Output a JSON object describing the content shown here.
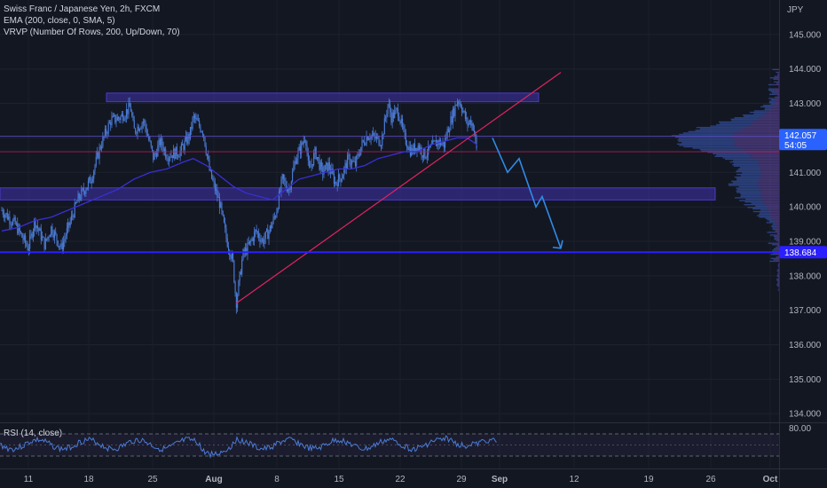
{
  "legend": {
    "title": "Swiss Franc / Japanese Yen, 2h, FXCM",
    "ema": "EMA (200, close, 0, SMA, 5)",
    "vrvp": "VRVP (Number Of Rows, 200, Up/Down, 70)"
  },
  "rsi": {
    "label": "RSI (14, close)",
    "upper_label": "80.00"
  },
  "colors": {
    "background": "#131722",
    "candles": "#4b7bd6",
    "ema": "#3a2fd6",
    "zone": "#4a3acb",
    "trendline": "#e0245e",
    "support": "#2b1fff",
    "projection": "#2f8be6",
    "price_badge": "#2962ff",
    "level_badge": "#7e57c2"
  },
  "chart_data": {
    "type": "candlestick",
    "currency": "JPY",
    "ylim": [
      133.8,
      146.0
    ],
    "y_ticks": [
      "134.000",
      "135.000",
      "136.000",
      "137.000",
      "138.000",
      "139.000",
      "140.000",
      "141.000",
      "142.000",
      "143.000",
      "144.000",
      "145.000"
    ],
    "x_ticks": [
      "11",
      "18",
      "25",
      "Aug",
      "8",
      "15",
      "22",
      "29",
      "Sep",
      "12",
      "19",
      "26",
      "Oct"
    ],
    "price_path": [
      [
        0,
        139.9
      ],
      [
        4,
        139.5
      ],
      [
        8,
        138.8
      ],
      [
        10,
        139.6
      ],
      [
        13,
        138.9
      ],
      [
        15,
        139.4
      ],
      [
        18,
        138.8
      ],
      [
        23,
        140.2
      ],
      [
        27,
        140.8
      ],
      [
        30,
        141.8
      ],
      [
        33,
        142.5
      ],
      [
        36,
        142.6
      ],
      [
        39,
        142.9
      ],
      [
        40,
        142.2
      ],
      [
        43,
        142.5
      ],
      [
        46,
        141.4
      ],
      [
        48,
        141.9
      ],
      [
        50,
        141.5
      ],
      [
        54,
        141.6
      ],
      [
        57,
        142.1
      ],
      [
        58,
        142.6
      ],
      [
        61,
        142.2
      ],
      [
        63,
        141.0
      ],
      [
        66,
        140.1
      ],
      [
        68,
        139.1
      ],
      [
        70,
        138.4
      ],
      [
        71,
        137.2
      ],
      [
        73,
        138.6
      ],
      [
        75,
        138.9
      ],
      [
        77,
        139.3
      ],
      [
        79,
        139.0
      ],
      [
        81,
        139.3
      ],
      [
        83,
        139.8
      ],
      [
        85,
        140.8
      ],
      [
        87,
        140.5
      ],
      [
        89,
        141.4
      ],
      [
        91,
        141.8
      ],
      [
        92,
        142.1
      ],
      [
        93,
        141.0
      ],
      [
        95,
        141.6
      ],
      [
        97,
        141.0
      ],
      [
        99,
        141.2
      ],
      [
        101,
        140.7
      ],
      [
        103,
        140.9
      ],
      [
        105,
        141.4
      ],
      [
        107,
        141.2
      ],
      [
        109,
        141.8
      ],
      [
        111,
        142.1
      ],
      [
        113,
        142.0
      ],
      [
        115,
        141.9
      ],
      [
        117,
        143.0
      ],
      [
        118,
        142.6
      ],
      [
        120,
        142.8
      ],
      [
        122,
        142.0
      ],
      [
        124,
        141.6
      ],
      [
        126,
        141.8
      ],
      [
        128,
        141.5
      ],
      [
        130,
        141.7
      ],
      [
        132,
        141.9
      ],
      [
        134,
        141.8
      ],
      [
        135,
        142.2
      ],
      [
        137,
        142.8
      ],
      [
        138,
        143.1
      ],
      [
        139,
        143.0
      ],
      [
        141,
        142.4
      ],
      [
        142,
        142.5
      ],
      [
        143,
        142.3
      ],
      [
        144,
        141.5
      ]
    ],
    "ema_path": [
      [
        0,
        139.3
      ],
      [
        5,
        139.4
      ],
      [
        10,
        139.6
      ],
      [
        15,
        139.7
      ],
      [
        20,
        139.9
      ],
      [
        25,
        140.1
      ],
      [
        30,
        140.3
      ],
      [
        35,
        140.5
      ],
      [
        40,
        140.8
      ],
      [
        45,
        141.0
      ],
      [
        50,
        141.1
      ],
      [
        55,
        141.3
      ],
      [
        58,
        141.4
      ],
      [
        62,
        141.2
      ],
      [
        66,
        140.9
      ],
      [
        70,
        140.6
      ],
      [
        74,
        140.4
      ],
      [
        78,
        140.3
      ],
      [
        82,
        140.2
      ],
      [
        86,
        140.5
      ],
      [
        90,
        140.8
      ],
      [
        94,
        140.9
      ],
      [
        98,
        141.0
      ],
      [
        102,
        141.1
      ],
      [
        106,
        141.1
      ],
      [
        110,
        141.2
      ],
      [
        114,
        141.4
      ],
      [
        118,
        141.5
      ],
      [
        122,
        141.6
      ],
      [
        126,
        141.6
      ],
      [
        130,
        141.8
      ],
      [
        134,
        141.9
      ],
      [
        138,
        142.0
      ],
      [
        141,
        142.0
      ],
      [
        144,
        141.8
      ]
    ],
    "resistance_zone": [
      143.05,
      143.3
    ],
    "mid_zone": [
      140.2,
      140.55
    ],
    "support_level": 138.684,
    "support_label": "138.684",
    "horizontal_levels": [
      141.6,
      142.05
    ],
    "trendline": {
      "from": [
        71,
        137.2
      ],
      "to": [
        174,
        143.9
      ]
    },
    "projection_path": [
      [
        144,
        142.0
      ],
      [
        148,
        141.0
      ],
      [
        151,
        141.4
      ],
      [
        156,
        140.0
      ],
      [
        159,
        140.3
      ],
      [
        164,
        138.8
      ]
    ],
    "projection_points": [
      "142.000",
      "141.000",
      "141.400",
      "140.000",
      "140.300",
      "138.800"
    ],
    "current_price": "142.057",
    "countdown": "54:05",
    "current_price_value": 142.057,
    "volume_profile_peak_price": 142.0
  }
}
